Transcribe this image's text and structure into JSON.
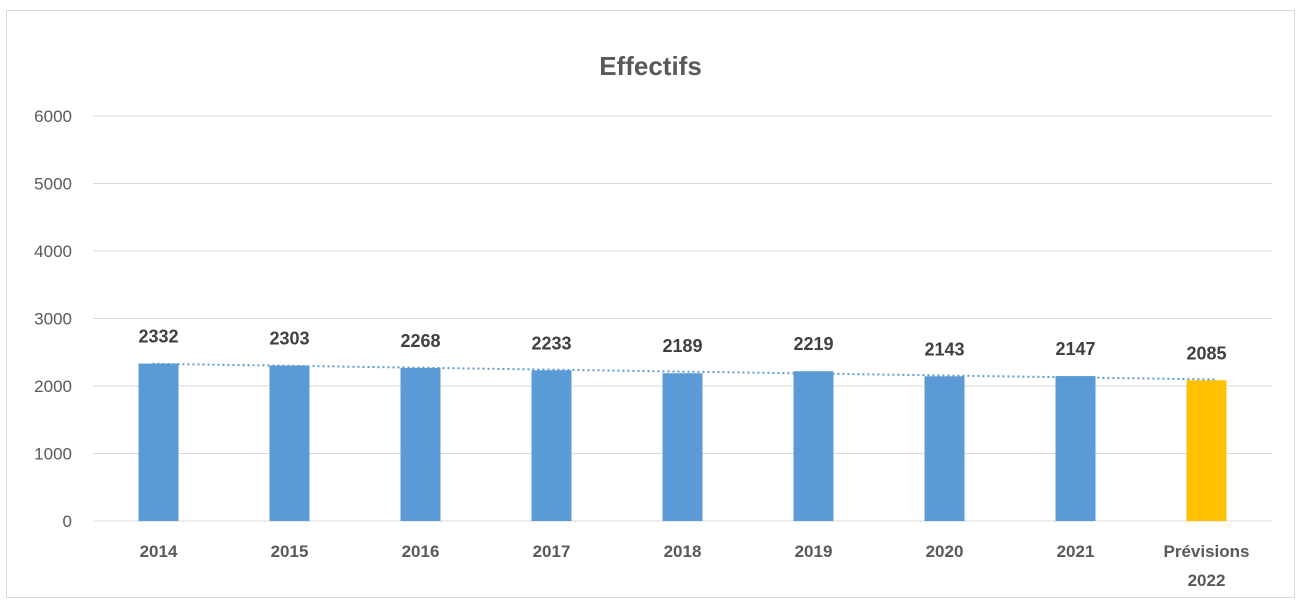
{
  "chart_data": {
    "type": "bar",
    "title": "Effectifs",
    "categories": [
      "2014",
      "2015",
      "2016",
      "2017",
      "2018",
      "2019",
      "2020",
      "2021",
      "Prévisions 2022"
    ],
    "category_lines": [
      [
        "2014"
      ],
      [
        "2015"
      ],
      [
        "2016"
      ],
      [
        "2017"
      ],
      [
        "2018"
      ],
      [
        "2019"
      ],
      [
        "2020"
      ],
      [
        "2021"
      ],
      [
        "Prévisions",
        "2022"
      ]
    ],
    "values": [
      2332,
      2303,
      2268,
      2233,
      2189,
      2219,
      2143,
      2147,
      2085
    ],
    "data_labels": [
      "2332",
      "2303",
      "2268",
      "2233",
      "2189",
      "2219",
      "2143",
      "2147",
      "2085"
    ],
    "bar_colors": [
      "#5b9bd5",
      "#5b9bd5",
      "#5b9bd5",
      "#5b9bd5",
      "#5b9bd5",
      "#5b9bd5",
      "#5b9bd5",
      "#5b9bd5",
      "#ffc000"
    ],
    "ylim": [
      0,
      6000
    ],
    "yticks": [
      "0",
      "1000",
      "2000",
      "3000",
      "4000",
      "5000",
      "6000"
    ],
    "grid": true,
    "legend": "none",
    "trendline": {
      "type": "linear",
      "style": "dotted",
      "color": "#5b9bd5"
    },
    "xlabel": "",
    "ylabel": ""
  }
}
